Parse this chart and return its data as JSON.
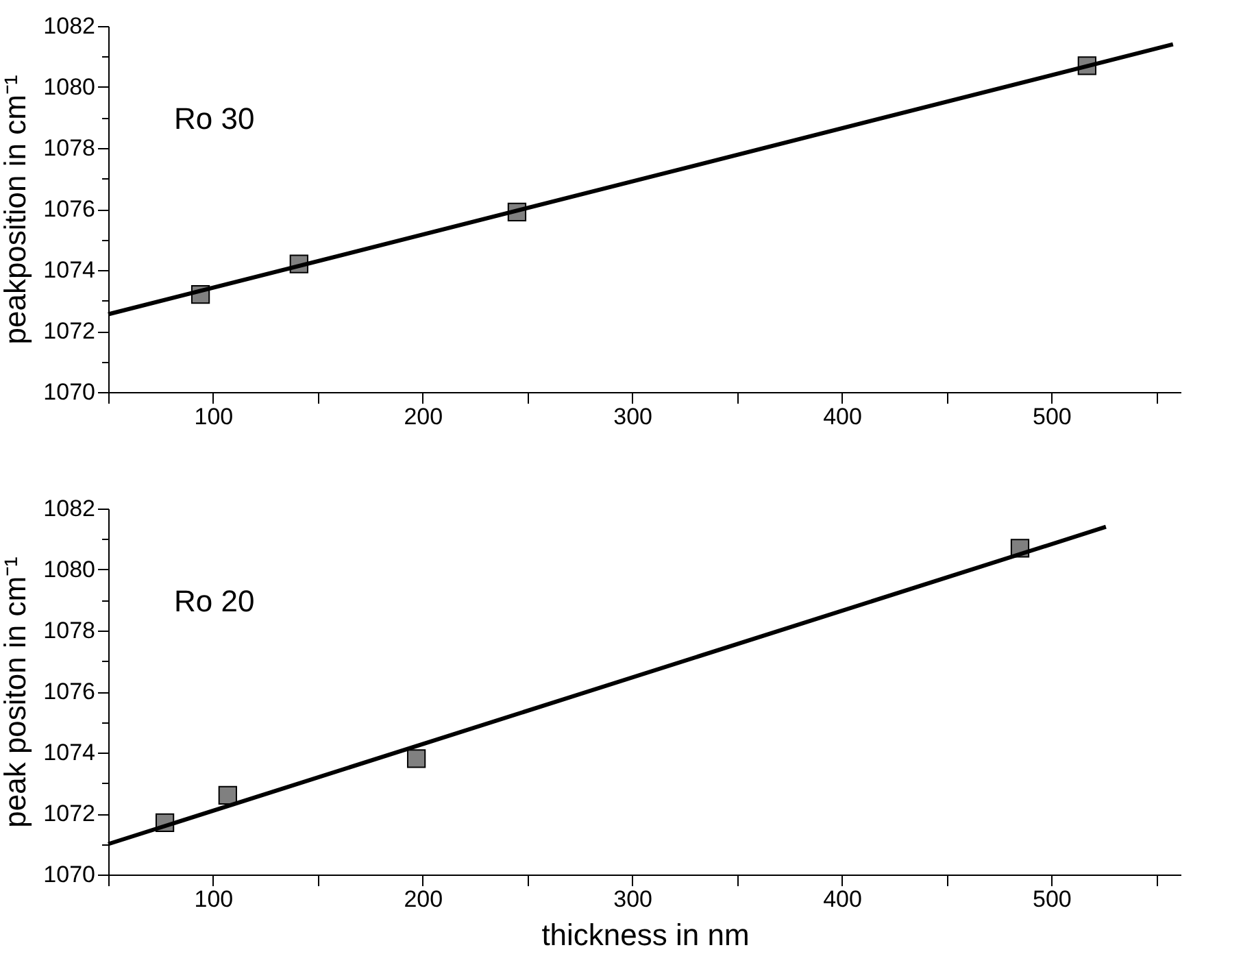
{
  "chart_data": [
    {
      "type": "scatter",
      "ylabel": "peakposition in cm⁻¹",
      "annotations": [
        "Ro 30"
      ],
      "marker": "square",
      "grid": false,
      "legend": false,
      "xlim": [
        50,
        562
      ],
      "xticks": [
        {
          "value": 50,
          "label": null
        },
        100,
        {
          "value": 150,
          "label": null
        },
        200,
        {
          "value": 250,
          "label": null
        },
        300,
        {
          "value": 350,
          "label": null
        },
        400,
        {
          "value": 450,
          "label": null
        },
        500,
        {
          "value": 550,
          "label": null
        }
      ],
      "ylim": [
        1070,
        1082
      ],
      "yticks": [
        1070,
        {
          "value": 1071,
          "label": null
        },
        1072,
        {
          "value": 1073,
          "label": null
        },
        1074,
        {
          "value": 1075,
          "label": null
        },
        1076,
        {
          "value": 1077,
          "label": null
        },
        1078,
        {
          "value": 1079,
          "label": null
        },
        1080,
        {
          "value": 1081,
          "label": null
        },
        1082
      ],
      "series": [
        {
          "color": "#808080",
          "x": [
            94,
            141,
            245,
            517
          ],
          "values": [
            1073.2,
            1074.2,
            1075.9,
            1080.7
          ]
        },
        {
          "type": "line",
          "marker": "none",
          "color": "#000000",
          "x": [
            50,
            558
          ],
          "values": [
            1072.55,
            1081.4
          ]
        }
      ]
    },
    {
      "type": "scatter",
      "ylabel": "peak positon in cm⁻¹",
      "xlabel": "thickness in nm",
      "annotations": [
        "Ro 20"
      ],
      "marker": "square",
      "grid": false,
      "legend": false,
      "xlim": [
        50,
        562
      ],
      "xticks": [
        {
          "value": 50,
          "label": null
        },
        100,
        {
          "value": 150,
          "label": null
        },
        200,
        {
          "value": 250,
          "label": null
        },
        300,
        {
          "value": 350,
          "label": null
        },
        400,
        {
          "value": 450,
          "label": null
        },
        500,
        {
          "value": 550,
          "label": null
        }
      ],
      "ylim": [
        1070,
        1082
      ],
      "yticks": [
        1070,
        {
          "value": 1071,
          "label": null
        },
        1072,
        {
          "value": 1073,
          "label": null
        },
        1074,
        {
          "value": 1075,
          "label": null
        },
        1076,
        {
          "value": 1077,
          "label": null
        },
        1078,
        {
          "value": 1079,
          "label": null
        },
        1080,
        {
          "value": 1081,
          "label": null
        },
        1082
      ],
      "series": [
        {
          "color": "#808080",
          "x": [
            77,
            107,
            197,
            485
          ],
          "values": [
            1071.7,
            1072.6,
            1073.8,
            1080.7
          ]
        },
        {
          "type": "line",
          "marker": "none",
          "color": "#000000",
          "x": [
            50,
            526
          ],
          "values": [
            1071.0,
            1081.4
          ]
        }
      ]
    }
  ]
}
